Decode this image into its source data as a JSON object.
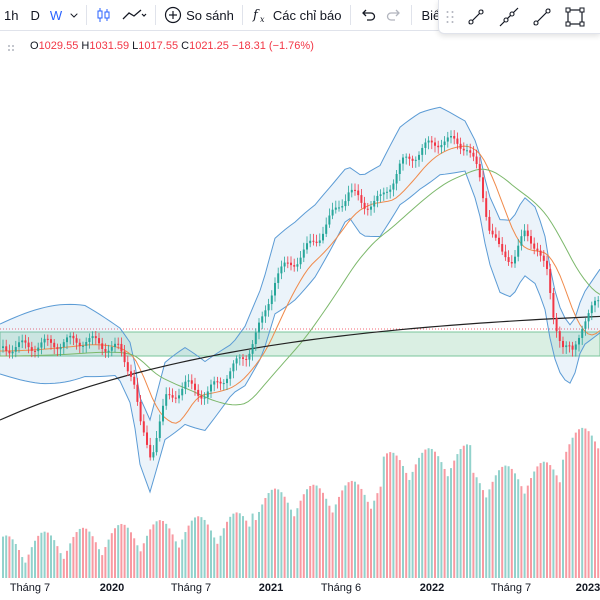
{
  "toolbar": {
    "intervals": [
      "1h",
      "D",
      "W"
    ],
    "active_interval": "W",
    "compare_label": "So sánh",
    "indicators_label": "Các chỉ báo",
    "layout_label": "Biểu đồ",
    "icons": [
      "candles-icon",
      "line-style-icon",
      "add-compare-icon",
      "fx-icon",
      "undo-icon",
      "redo-icon",
      "chevron-down-icon"
    ]
  },
  "drawbar": {
    "tools": [
      "trend-line-tool",
      "ray-tool",
      "extended-line-tool",
      "rectangle-tool"
    ]
  },
  "legend": {
    "o_label": "O",
    "o_value": "1029.55",
    "h_label": "H",
    "h_value": "1031.59",
    "l_label": "L",
    "l_value": "1017.55",
    "c_label": "C",
    "c_value": "1021.25",
    "change": "−18.31 (−1.76%)"
  },
  "xaxis": {
    "labels": [
      {
        "text": "Tháng 7",
        "bold": false
      },
      {
        "text": "2020",
        "bold": true
      },
      {
        "text": "Tháng 7",
        "bold": false
      },
      {
        "text": "2021",
        "bold": true
      },
      {
        "text": "Tháng 6",
        "bold": false
      },
      {
        "text": "2022",
        "bold": true
      },
      {
        "text": "Tháng 7",
        "bold": false
      },
      {
        "text": "2023",
        "bold": true
      }
    ]
  },
  "colors": {
    "up": "#26a69a",
    "down": "#f23645",
    "bollinger": "#5b9bd5",
    "ma_orange": "#f08a4b",
    "ma_green": "#7cb86b",
    "ma_long": "#222222",
    "zone": "#7ac59b",
    "accent": "#2962ff"
  }
}
